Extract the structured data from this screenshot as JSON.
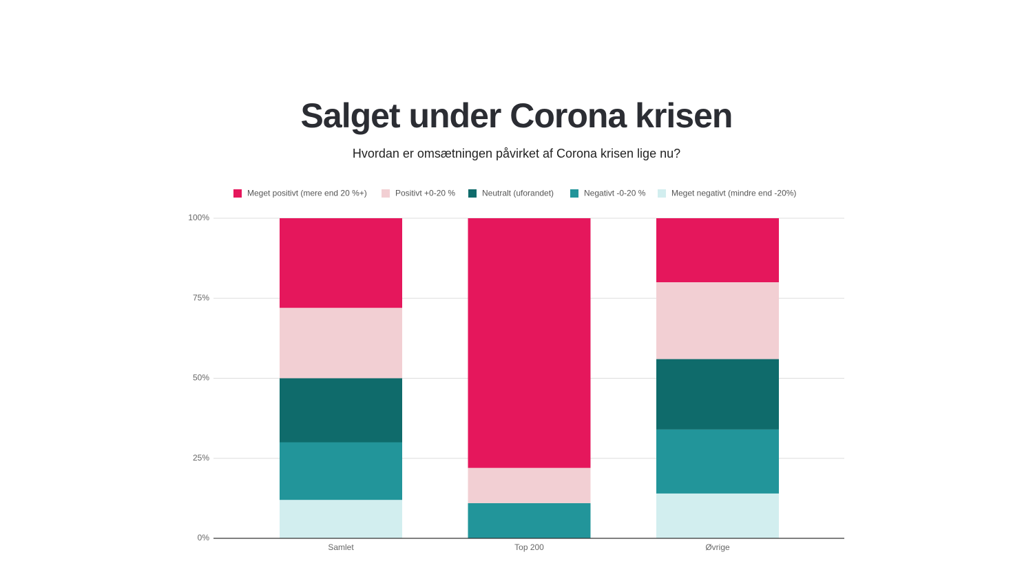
{
  "chart_data": {
    "type": "stacked_bar",
    "title": "Salget under Corona krisen",
    "subtitle": "Hvordan er omsætningen påvirket af Corona krisen lige nu?",
    "categories": [
      "Samlet",
      "Top 200",
      "Øvrige"
    ],
    "series": [
      {
        "name": "Meget positivt (mere end 20 %+)",
        "color": "#e5175c",
        "values": [
          28,
          78,
          20
        ]
      },
      {
        "name": "Positivt +0-20 %",
        "color": "#f2cfd3",
        "values": [
          22,
          11,
          24
        ]
      },
      {
        "name": "Neutralt (uforandet)",
        "color": "#0f6b6b",
        "values": [
          20,
          0,
          22
        ]
      },
      {
        "name": "Negativt -0-20 %",
        "color": "#22959a",
        "values": [
          18,
          11,
          20
        ]
      },
      {
        "name": "Meget negativt (mindre end -20%)",
        "color": "#d2eeef",
        "values": [
          12,
          0,
          14
        ]
      }
    ],
    "ylim": [
      0,
      100
    ],
    "yticks": [
      {
        "value": 0,
        "label": "0%"
      },
      {
        "value": 25,
        "label": "25%"
      },
      {
        "value": 50,
        "label": "50%"
      },
      {
        "value": 75,
        "label": "75%"
      },
      {
        "value": 100,
        "label": "100%"
      }
    ],
    "grid": true,
    "legend": "top"
  }
}
